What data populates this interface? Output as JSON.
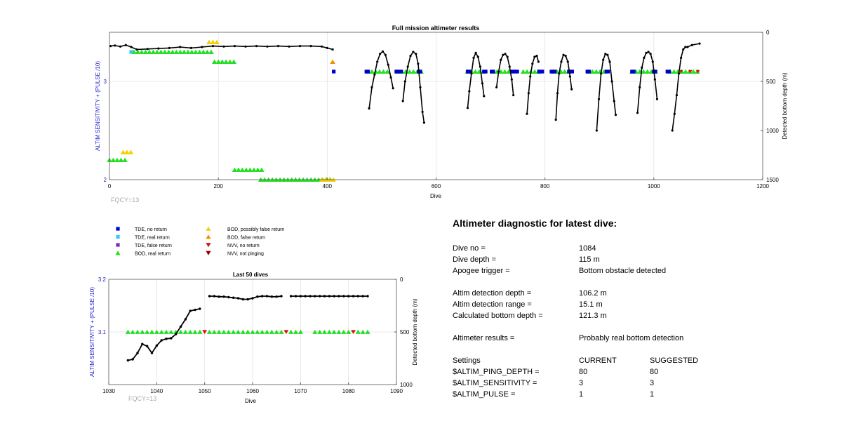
{
  "top_chart": {
    "title": "Full mission altimeter results",
    "xlabel": "Dive",
    "ylabel_left": "ALTIM SENSITIVITY + (PULSE /10)",
    "ylabel_right": "Detected bottom depth (m)",
    "annotation": "FQCY=13",
    "x_ticks": [
      "0",
      "200",
      "400",
      "600",
      "800",
      "1000",
      "1200"
    ],
    "y_left_ticks": [
      "2",
      "3"
    ],
    "y_right_ticks": [
      "0",
      "500",
      "1000",
      "1500"
    ]
  },
  "bottom_chart": {
    "title": "Last 50 dives",
    "xlabel": "Dive",
    "ylabel_left": "ALTIM SENSITIVITY + (PULSE /10)",
    "ylabel_right": "Detected bottom depth (m)",
    "annotation": "FQCY=13",
    "x_ticks": [
      "1030",
      "1040",
      "1050",
      "1060",
      "1070",
      "1080",
      "1090"
    ],
    "y_left_ticks": [
      "3.1",
      "3.2"
    ],
    "y_right_ticks": [
      "0",
      "500",
      "1000"
    ]
  },
  "legend": [
    {
      "label": "TDE, no return",
      "marker": "square",
      "color": "#0000cc"
    },
    {
      "label": "TDE, real return",
      "marker": "square",
      "color": "#33ccee"
    },
    {
      "label": "TDE, false return",
      "marker": "square",
      "color": "#7a2bc4"
    },
    {
      "label": "BOD, real return",
      "marker": "triangle-up",
      "color": "#22e022"
    },
    {
      "label": "BOD, possibly false return",
      "marker": "triangle-up",
      "color": "#f5d000"
    },
    {
      "label": "BOD, false return",
      "marker": "triangle-up",
      "color": "#f09000"
    },
    {
      "label": "NVV, no return",
      "marker": "triangle-down",
      "color": "#dd1111"
    },
    {
      "label": "NVV, not pinging",
      "marker": "triangle-down",
      "color": "#8b0000"
    }
  ],
  "diagnostic": {
    "title": "Altimeter diagnostic for latest dive:",
    "dive_no_label": "Dive no =",
    "dive_no": "1084",
    "dive_depth_label": "Dive depth =",
    "dive_depth": "115 m",
    "apogee_label": "Apogee trigger =",
    "apogee": "Bottom obstacle detected",
    "det_depth_label": "Altim detection depth =",
    "det_depth": "106.2 m",
    "det_range_label": "Altim detection range =",
    "det_range": "15.1 m",
    "calc_bottom_label": "Calculated bottom depth =",
    "calc_bottom": "121.3 m",
    "results_label": "Altimeter results =",
    "results": "Probably real bottom detection",
    "settings_label": "Settings",
    "current_label": "CURRENT",
    "suggested_label": "SUGGESTED",
    "ping_depth_label": "$ALTIM_PING_DEPTH =",
    "ping_depth_current": "80",
    "ping_depth_suggested": "80",
    "sensitivity_label": "$ALTIM_SENSITIVITY =",
    "sensitivity_current": "3",
    "sensitivity_suggested": "3",
    "pulse_label": "$ALTIM_PULSE =",
    "pulse_current": "1",
    "pulse_suggested": "1"
  },
  "chart_data": [
    {
      "type": "scatter",
      "title": "Full mission altimeter results",
      "xlabel": "Dive",
      "ylabel": "ALTIM SENSITIVITY + (PULSE /10)",
      "y2label": "Detected bottom depth (m)",
      "xlim": [
        0,
        1200
      ],
      "ylim": [
        2,
        3.5
      ],
      "y2lim": [
        1500,
        0
      ],
      "grid": true,
      "depth_series": {
        "name": "Detected bottom depth",
        "color": "#000000",
        "segments": [
          [
            [
              2,
              140
            ],
            [
              10,
              135
            ],
            [
              20,
              145
            ],
            [
              30,
              130
            ],
            [
              40,
              150
            ],
            [
              50,
              175
            ],
            [
              70,
              170
            ],
            [
              90,
              165
            ],
            [
              110,
              160
            ],
            [
              130,
              150
            ],
            [
              150,
              160
            ],
            [
              170,
              150
            ],
            [
              190,
              140
            ],
            [
              210,
              145
            ],
            [
              230,
              140
            ],
            [
              250,
              145
            ],
            [
              270,
              140
            ],
            [
              290,
              145
            ],
            [
              310,
              140
            ],
            [
              330,
              145
            ],
            [
              350,
              140
            ],
            [
              370,
              140
            ],
            [
              390,
              145
            ],
            [
              400,
              160
            ],
            [
              410,
              175
            ]
          ],
          [
            [
              477,
              775
            ],
            [
              482,
              560
            ],
            [
              487,
              430
            ],
            [
              492,
              300
            ],
            [
              497,
              220
            ],
            [
              502,
              195
            ],
            [
              507,
              230
            ],
            [
              512,
              330
            ],
            [
              517,
              460
            ],
            [
              521,
              570
            ]
          ],
          [
            [
              539,
              700
            ],
            [
              543,
              500
            ],
            [
              548,
              350
            ],
            [
              553,
              240
            ],
            [
              558,
              200
            ],
            [
              563,
              220
            ],
            [
              567,
              320
            ],
            [
              571,
              560
            ],
            [
              575,
              810
            ],
            [
              578,
              920
            ]
          ],
          [
            [
              658,
              770
            ],
            [
              661,
              600
            ],
            [
              665,
              420
            ],
            [
              669,
              260
            ],
            [
              673,
              210
            ],
            [
              677,
              250
            ],
            [
              681,
              350
            ],
            [
              685,
              520
            ],
            [
              688,
              650
            ]
          ],
          [
            [
              711,
              560
            ],
            [
              715,
              400
            ],
            [
              719,
              280
            ],
            [
              723,
              230
            ],
            [
              727,
              220
            ],
            [
              731,
              250
            ],
            [
              735,
              350
            ],
            [
              739,
              480
            ],
            [
              742,
              640
            ]
          ],
          [
            [
              767,
              830
            ],
            [
              770,
              620
            ],
            [
              773,
              450
            ],
            [
              777,
              320
            ],
            [
              781,
              250
            ],
            [
              785,
              240
            ],
            [
              788,
              300
            ]
          ],
          [
            [
              820,
              890
            ],
            [
              823,
              620
            ],
            [
              826,
              420
            ],
            [
              830,
              300
            ],
            [
              834,
              230
            ],
            [
              838,
              240
            ],
            [
              842,
              300
            ],
            [
              846,
              450
            ],
            [
              849,
              580
            ]
          ],
          [
            [
              895,
              1000
            ],
            [
              899,
              680
            ],
            [
              903,
              420
            ],
            [
              907,
              280
            ],
            [
              911,
              220
            ],
            [
              915,
              230
            ],
            [
              919,
              300
            ],
            [
              923,
              500
            ],
            [
              927,
              700
            ],
            [
              930,
              840
            ]
          ],
          [
            [
              970,
              820
            ],
            [
              974,
              560
            ],
            [
              978,
              360
            ],
            [
              982,
              260
            ],
            [
              986,
              210
            ],
            [
              990,
              200
            ],
            [
              994,
              220
            ],
            [
              998,
              300
            ],
            [
              1002,
              480
            ],
            [
              1006,
              680
            ]
          ],
          [
            [
              1034,
              1000
            ],
            [
              1038,
              830
            ],
            [
              1042,
              640
            ],
            [
              1046,
              420
            ],
            [
              1050,
              260
            ],
            [
              1054,
              175
            ],
            [
              1058,
              150
            ],
            [
              1062,
              150
            ],
            [
              1070,
              130
            ],
            [
              1084,
              115
            ]
          ]
        ]
      },
      "marker_ranges": [
        {
          "name": "BOD, real return",
          "color": "#22e022",
          "y": 2.2,
          "x": [
            0,
            35
          ]
        },
        {
          "name": "BOD, possibly false return",
          "color": "#f5d000",
          "y": 2.28,
          "x": [
            25,
            40
          ]
        },
        {
          "name": "BOD, real return",
          "color": "#22e022",
          "y": 2.1,
          "x": [
            230,
            285
          ]
        },
        {
          "name": "BOD, real return",
          "color": "#22e022",
          "y": 2.0,
          "x": [
            278,
            410
          ]
        },
        {
          "name": "BOD, possibly false return",
          "color": "#f5d000",
          "y": 2.0,
          "x": [
            390,
            412
          ]
        },
        {
          "name": "BOD, real return",
          "color": "#22e022",
          "y": 3.3,
          "x": [
            45,
            190
          ]
        },
        {
          "name": "BOD, possibly false return",
          "color": "#f5d000",
          "y": 3.4,
          "x": [
            183,
            198
          ]
        },
        {
          "name": "BOD, real return",
          "color": "#22e022",
          "y": 3.2,
          "x": [
            193,
            235
          ]
        },
        {
          "name": "BOD, false return",
          "color": "#f09000",
          "y": 3.2,
          "x": [
            410,
            412
          ]
        },
        {
          "name": "TDE, no return",
          "color": "#0000cc",
          "y": 3.1,
          "x": [
            412,
            414
          ]
        },
        {
          "name": "TDE, real return",
          "color": "#33ccee",
          "y": 3.3,
          "x": [
            40,
            45
          ]
        },
        {
          "name": "BOD, real return",
          "color": "#22e022",
          "y": 3.1,
          "x": [
            475,
            515
          ]
        },
        {
          "name": "BOD, real return",
          "color": "#22e022",
          "y": 3.1,
          "x": [
            530,
            575
          ]
        },
        {
          "name": "BOD, real return",
          "color": "#22e022",
          "y": 3.1,
          "x": [
            658,
            690
          ]
        },
        {
          "name": "BOD, real return",
          "color": "#22e022",
          "y": 3.1,
          "x": [
            705,
            740
          ]
        },
        {
          "name": "BOD, real return",
          "color": "#22e022",
          "y": 3.1,
          "x": [
            760,
            790
          ]
        },
        {
          "name": "BOD, real return",
          "color": "#22e022",
          "y": 3.1,
          "x": [
            815,
            845
          ]
        },
        {
          "name": "BOD, real return",
          "color": "#22e022",
          "y": 3.1,
          "x": [
            880,
            915
          ]
        },
        {
          "name": "BOD, real return",
          "color": "#22e022",
          "y": 3.1,
          "x": [
            960,
            1005
          ]
        },
        {
          "name": "BOD, real return",
          "color": "#22e022",
          "y": 3.1,
          "x": [
            1030,
            1085
          ]
        }
      ],
      "tde_no_return_dives": [
        472,
        475,
        527,
        530,
        536,
        568,
        571,
        658,
        661,
        688,
        691,
        702,
        705,
        740,
        743,
        746,
        749,
        789,
        792,
        795,
        812,
        815,
        818,
        844,
        847,
        850,
        878,
        881,
        913,
        916,
        960,
        963,
        1000,
        1003,
        1025,
        1028
      ],
      "nvv_no_return_dives": [
        1050,
        1067,
        1081
      ]
    },
    {
      "type": "scatter",
      "title": "Last 50 dives",
      "xlabel": "Dive",
      "ylabel": "ALTIM SENSITIVITY + (PULSE /10)",
      "y2label": "Detected bottom depth (m)",
      "xlim": [
        1030,
        1090
      ],
      "ylim": [
        3.0,
        3.2
      ],
      "y2lim": [
        1000,
        0
      ],
      "grid": true,
      "depth_series": {
        "name": "Detected bottom depth",
        "color": "#000000",
        "segments": [
          [
            [
              1034,
              770
            ],
            [
              1035,
              760
            ],
            [
              1036,
              700
            ],
            [
              1037,
              615
            ],
            [
              1038,
              635
            ],
            [
              1039,
              700
            ],
            [
              1040,
              630
            ],
            [
              1041,
              580
            ],
            [
              1042,
              565
            ],
            [
              1043,
              560
            ],
            [
              1044,
              520
            ],
            [
              1045,
              450
            ],
            [
              1046,
              380
            ],
            [
              1047,
              300
            ],
            [
              1048,
              290
            ],
            [
              1049,
              280
            ]
          ],
          [
            [
              1051,
              160
            ],
            [
              1052,
              160
            ],
            [
              1053,
              165
            ],
            [
              1054,
              165
            ],
            [
              1055,
              170
            ],
            [
              1056,
              175
            ],
            [
              1057,
              180
            ],
            [
              1058,
              190
            ],
            [
              1059,
              190
            ],
            [
              1060,
              180
            ],
            [
              1061,
              165
            ],
            [
              1062,
              160
            ],
            [
              1063,
              160
            ],
            [
              1064,
              165
            ],
            [
              1065,
              165
            ],
            [
              1066,
              160
            ]
          ],
          [
            [
              1068,
              160
            ],
            [
              1069,
              160
            ],
            [
              1070,
              160
            ],
            [
              1071,
              160
            ],
            [
              1072,
              160
            ],
            [
              1073,
              160
            ],
            [
              1074,
              160
            ],
            [
              1075,
              160
            ],
            [
              1076,
              160
            ],
            [
              1077,
              160
            ],
            [
              1078,
              160
            ],
            [
              1079,
              160
            ],
            [
              1080,
              160
            ],
            [
              1081,
              160
            ],
            [
              1082,
              160
            ],
            [
              1083,
              160
            ],
            [
              1084,
              160
            ]
          ]
        ]
      },
      "bod_real_return_dives": [
        1034,
        1035,
        1036,
        1037,
        1038,
        1039,
        1040,
        1041,
        1042,
        1043,
        1044,
        1045,
        1046,
        1047,
        1048,
        1049,
        1051,
        1052,
        1053,
        1054,
        1055,
        1056,
        1057,
        1058,
        1059,
        1060,
        1061,
        1062,
        1063,
        1064,
        1065,
        1066,
        1068,
        1069,
        1070,
        1073,
        1074,
        1075,
        1076,
        1077,
        1078,
        1079,
        1080,
        1082,
        1083,
        1084
      ],
      "bod_real_return_y": 3.1,
      "nvv_no_return_dives": [
        1050,
        1067,
        1081
      ],
      "nvv_no_return_y": 3.1
    }
  ]
}
